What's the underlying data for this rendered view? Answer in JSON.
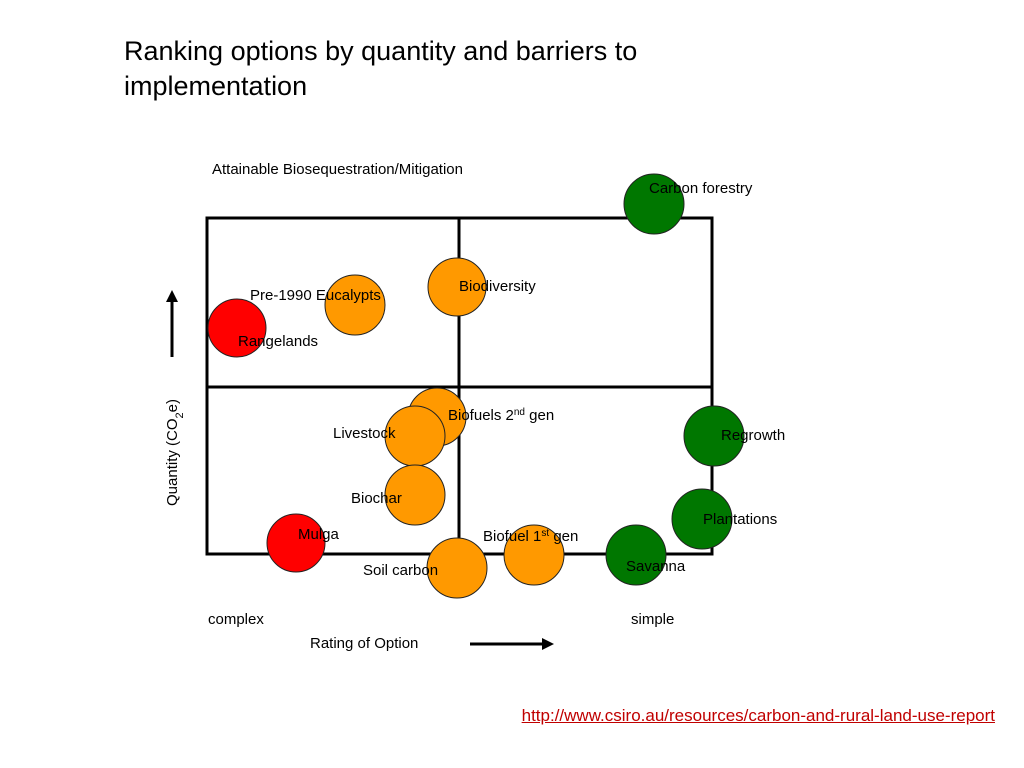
{
  "slide": {
    "title": "Ranking options by quantity and barriers to implementation",
    "source_link": "http://www.csiro.au/resources/carbon-and-rural-land-use-report"
  },
  "diagram": {
    "header": "Attainable Biosequestration/Mitigation",
    "y_axis_label": "Quantity (CO",
    "y_axis_sub": "2",
    "y_axis_suffix": "e)",
    "x_axis_label": "Rating of Option",
    "x_left_label": "complex",
    "x_right_label": "simple",
    "colors": {
      "red": "#ff0000",
      "orange": "#ff9900",
      "green": "#007700",
      "frame": "#000000"
    },
    "nodes": [
      {
        "id": "carbon-forestry",
        "label": "Carbon forestry",
        "color": "green"
      },
      {
        "id": "biodiversity",
        "label": "Biodiversity",
        "color": "orange"
      },
      {
        "id": "pre-1990-eucalypts",
        "label": "Pre-1990 Eucalypts",
        "color": "orange"
      },
      {
        "id": "rangelands",
        "label": "Rangelands",
        "color": "red"
      },
      {
        "id": "biofuels-2nd-gen",
        "label": "Biofuels 2",
        "sup": "nd",
        "suffix": " gen",
        "color": "orange"
      },
      {
        "id": "livestock",
        "label": "Livestock",
        "color": "orange"
      },
      {
        "id": "regrowth",
        "label": "Regrowth",
        "color": "green"
      },
      {
        "id": "biochar",
        "label": "Biochar",
        "color": "orange"
      },
      {
        "id": "plantations",
        "label": "Plantations",
        "color": "green"
      },
      {
        "id": "mulga",
        "label": "Mulga",
        "color": "red"
      },
      {
        "id": "biofuel-1st-gen",
        "label": "Biofuel 1",
        "sup": "st",
        "suffix": " gen",
        "color": "orange"
      },
      {
        "id": "soil-carbon",
        "label": "Soil carbon",
        "color": "orange"
      },
      {
        "id": "savanna",
        "label": "Savanna",
        "color": "green"
      }
    ]
  }
}
